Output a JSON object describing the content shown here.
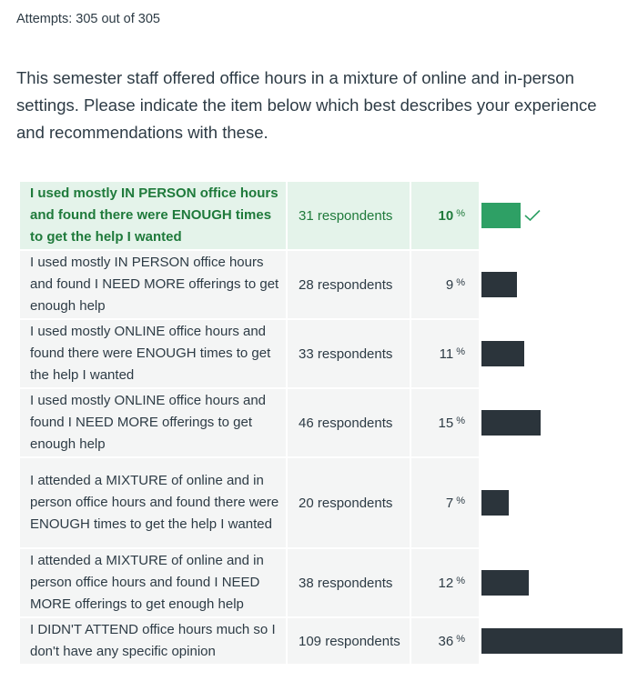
{
  "attempts_text": "Attempts: 305 out of 305",
  "question_text": "This semester staff offered office hours in a mixture of online and in-person settings. Please indicate the item below which best describes your experience and recommendations with these.",
  "colors": {
    "correct_bar": "#2ea065",
    "bar": "#2b343b",
    "correct_bg": "#e4f3ea",
    "row_bg": "#f4f5f5",
    "correct_text": "#1f7a3b"
  },
  "answers": [
    {
      "text": "I used mostly IN PERSON office hours and found there were ENOUGH times to get the help I wanted",
      "respondents": "31 respondents",
      "percent": "10",
      "percent_symbol": "%",
      "correct": true,
      "icon": "check-icon"
    },
    {
      "text": "I used mostly IN PERSON office hours and found I NEED MORE offerings to get enough help",
      "respondents": "28 respondents",
      "percent": "9",
      "percent_symbol": "%",
      "correct": false
    },
    {
      "text": "I used mostly ONLINE office hours and found there were ENOUGH times to get the help I wanted",
      "respondents": "33 respondents",
      "percent": "11",
      "percent_symbol": "%",
      "correct": false
    },
    {
      "text": "I used mostly ONLINE office hours and found I NEED MORE offerings to get enough help",
      "respondents": "46 respondents",
      "percent": "15",
      "percent_symbol": "%",
      "correct": false
    },
    {
      "text": "I attended a MIXTURE of online and in person office hours and found there were ENOUGH times to get the help I wanted",
      "respondents": "20 respondents",
      "percent": "7",
      "percent_symbol": "%",
      "correct": false
    },
    {
      "text": "I attended a MIXTURE of online and in person office hours and found I NEED MORE offerings to get enough help",
      "respondents": "38 respondents",
      "percent": "12",
      "percent_symbol": "%",
      "correct": false
    },
    {
      "text": "I DIDN'T ATTEND office hours much so I don't have any specific opinion",
      "respondents": "109 respondents",
      "percent": "36",
      "percent_symbol": "%",
      "correct": false
    }
  ]
}
